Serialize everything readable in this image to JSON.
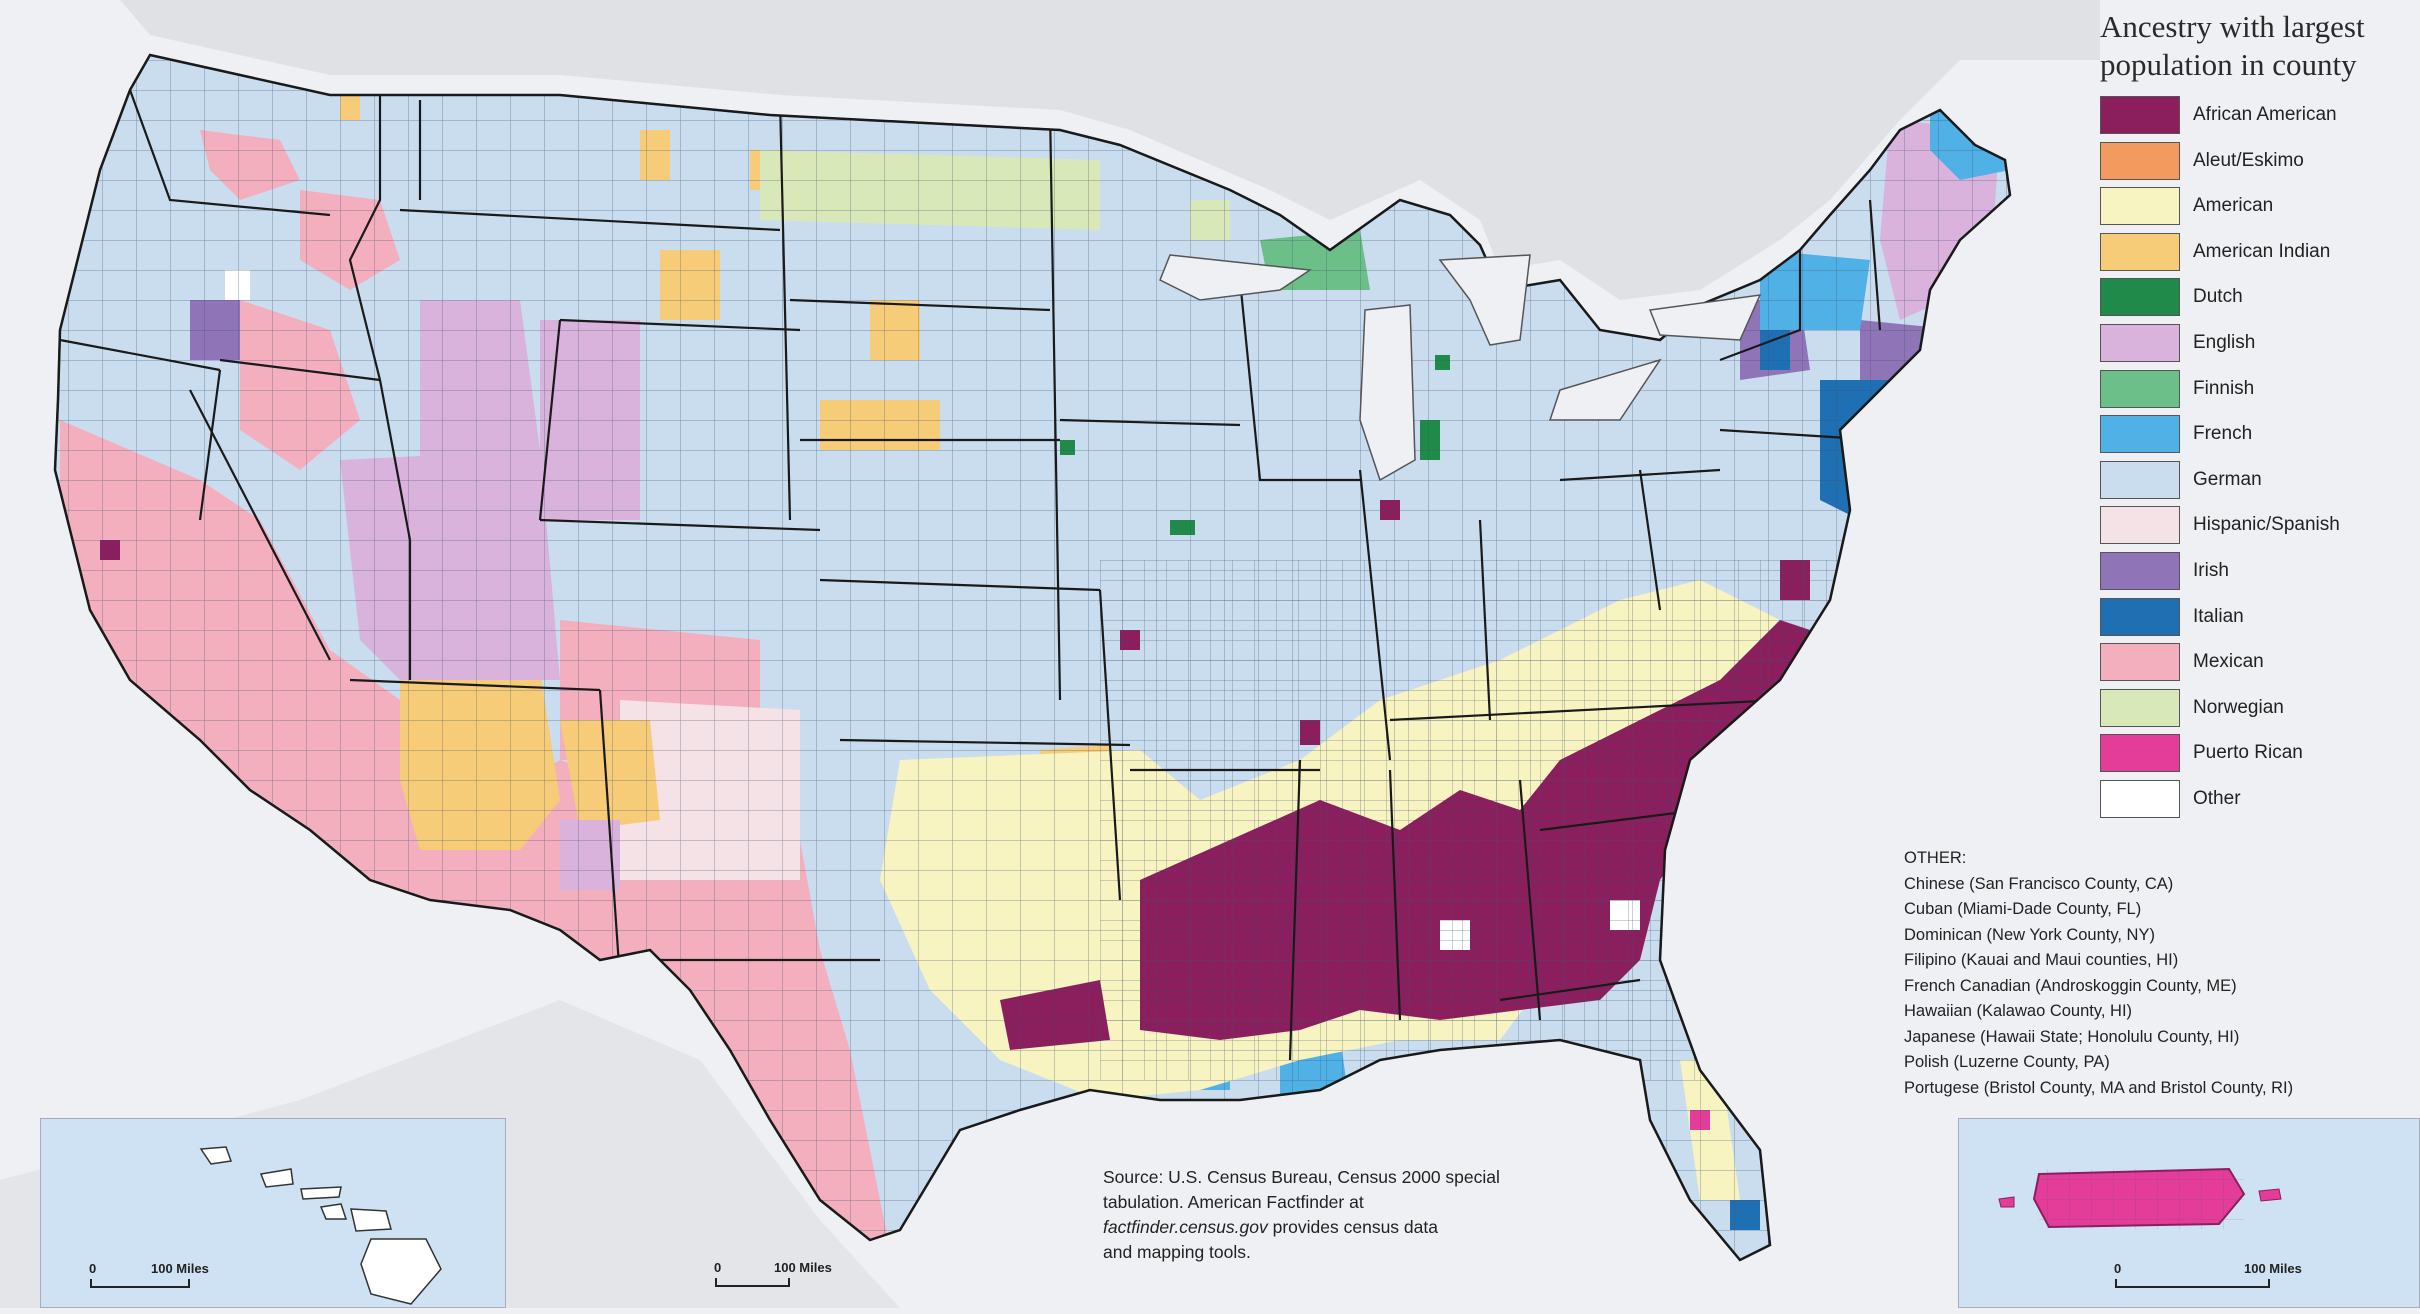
{
  "legend": {
    "title_line1": "Ancestry with largest",
    "title_line2": "population in county",
    "items": [
      {
        "label": "African American",
        "color": "#8b1f5e"
      },
      {
        "label": "Aleut/Eskimo",
        "color": "#f39a5e"
      },
      {
        "label": "American",
        "color": "#f7f4c2"
      },
      {
        "label": "American Indian",
        "color": "#f6cc78"
      },
      {
        "label": "Dutch",
        "color": "#1f8a4a"
      },
      {
        "label": "English",
        "color": "#d9b3dc"
      },
      {
        "label": "Finnish",
        "color": "#6cbf88"
      },
      {
        "label": "French",
        "color": "#4fb1e6"
      },
      {
        "label": "German",
        "color": "#c9ddef"
      },
      {
        "label": "Hispanic/Spanish",
        "color": "#f5e2e6"
      },
      {
        "label": "Irish",
        "color": "#8f74b8"
      },
      {
        "label": "Italian",
        "color": "#1f6fb3"
      },
      {
        "label": "Mexican",
        "color": "#f4afbf"
      },
      {
        "label": "Norwegian",
        "color": "#d9e8b8"
      },
      {
        "label": "Puerto Rican",
        "color": "#e33c99"
      },
      {
        "label": "Other",
        "color": "#ffffff"
      }
    ]
  },
  "other": {
    "heading": "OTHER:",
    "items": [
      "Chinese (San Francisco County, CA)",
      "Cuban (Miami-Dade County, FL)",
      "Dominican (New York County, NY)",
      "Filipino (Kauai and Maui counties, HI)",
      "French Canadian (Androskoggin County, ME)",
      "Hawaiian (Kalawao County, HI)",
      "Japanese (Hawaii State; Honolulu County, HI)",
      "Polish (Luzerne County, PA)",
      "Portugese (Bristol County, MA and Bristol County, RI)"
    ]
  },
  "source": {
    "line1": "Source: U.S. Census Bureau, Census 2000 special",
    "line2": "tabulation. American Factfinder at",
    "line3_italic": "factfinder.census.gov",
    "line3_rest": " provides census data",
    "line4": "and mapping tools."
  },
  "insets": {
    "hawaii_scale_zero": "0",
    "hawaii_scale_label": "100 Miles",
    "alaska_scale_zero": "0",
    "alaska_scale_label": "100 Miles",
    "pr_scale_zero": "0",
    "pr_scale_label": "100 Miles"
  }
}
